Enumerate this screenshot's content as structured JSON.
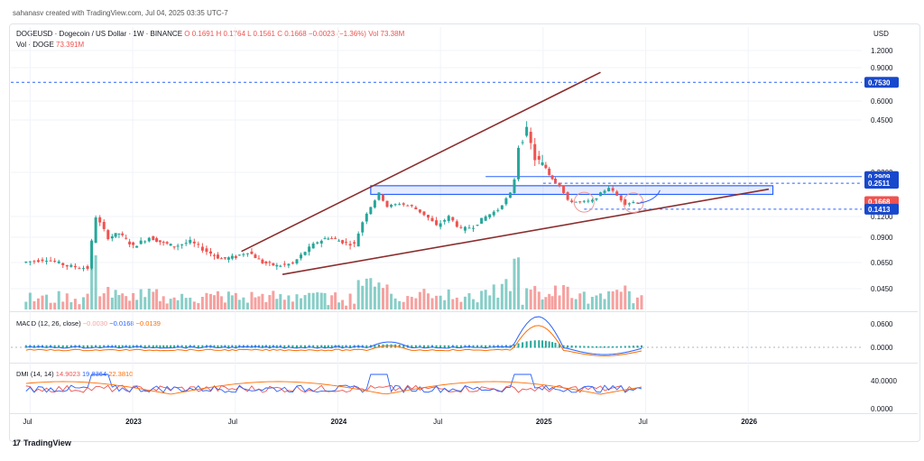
{
  "header": {
    "credit": "sahanasv created with TradingView.com, Jul 04, 2025 03:35 UTC-7"
  },
  "legend": {
    "symbol": "DOGEUSD · Dogecoin / US Dollar · 1W · BINANCE",
    "open": "O 0.1691",
    "high": "H 0.1764",
    "low": "L 0.1561",
    "close": "C 0.1668",
    "change": "−0.0023 (−1.36%)",
    "vol": "Vol 73.38M",
    "vol_label": "Vol · DOGE",
    "vol_value": "73.391M"
  },
  "macd_legend": {
    "label": "MACD (12, 26, close)",
    "v1": "−0.0030",
    "v2": "−0.0168",
    "v3": "−0.0139"
  },
  "dmi_legend": {
    "label": "DMI (14, 14)",
    "v1": "14.9023",
    "v2": "19.8364",
    "v3": "22.3810"
  },
  "axis": {
    "currency": "USD"
  },
  "brand": {
    "logo": "17",
    "name": "TradingView"
  },
  "colors": {
    "up": "#26a69a",
    "down": "#ef5350",
    "trend": "#8b2e2e",
    "level": "#2962ff",
    "price_badge": "#ef5350",
    "level_badge": "#1848cc"
  },
  "chart_data": {
    "type": "candlestick",
    "scale": "log",
    "price_axis_labels": [
      "1.2000",
      "0.9000",
      "0.6000",
      "0.4500",
      "0.3200",
      "0.1200",
      "0.0900",
      "0.0650",
      "0.0450"
    ],
    "price_badges": [
      {
        "label": "0.7530",
        "value": 0.753,
        "kind": "level"
      },
      {
        "label": "0.2909",
        "value": 0.2909,
        "kind": "level"
      },
      {
        "label": "0.2511",
        "value": 0.2511,
        "kind": "level"
      },
      {
        "label": "0.1668",
        "value": 0.1668,
        "kind": "price"
      },
      {
        "label": "0.1413",
        "value": 0.1413,
        "kind": "level"
      }
    ],
    "x_labels": [
      "Jul",
      "2023",
      "Jul",
      "2024",
      "Jul",
      "2025",
      "Jul",
      "2026"
    ],
    "x_label_dates": [
      2022.5,
      2023.0,
      2023.5,
      2024.0,
      2024.5,
      2025.0,
      2025.5,
      2026.0
    ],
    "macd_axis_labels": [
      "0.0600",
      "0.0000"
    ],
    "dmi_axis_labels": [
      "40.0000",
      "0.0000"
    ],
    "price_path": [
      [
        2022.48,
        0.065
      ],
      [
        2022.6,
        0.068
      ],
      [
        2022.7,
        0.062
      ],
      [
        2022.8,
        0.06
      ],
      [
        2022.84,
        0.12
      ],
      [
        2022.9,
        0.09
      ],
      [
        2022.95,
        0.095
      ],
      [
        2023.02,
        0.08
      ],
      [
        2023.1,
        0.09
      ],
      [
        2023.15,
        0.085
      ],
      [
        2023.22,
        0.08
      ],
      [
        2023.3,
        0.085
      ],
      [
        2023.38,
        0.075
      ],
      [
        2023.45,
        0.068
      ],
      [
        2023.52,
        0.07
      ],
      [
        2023.58,
        0.075
      ],
      [
        2023.65,
        0.065
      ],
      [
        2023.72,
        0.062
      ],
      [
        2023.8,
        0.064
      ],
      [
        2023.86,
        0.075
      ],
      [
        2023.92,
        0.085
      ],
      [
        2023.97,
        0.09
      ],
      [
        2024.04,
        0.085
      ],
      [
        2024.1,
        0.082
      ],
      [
        2024.16,
        0.13
      ],
      [
        2024.22,
        0.2
      ],
      [
        2024.26,
        0.15
      ],
      [
        2024.32,
        0.16
      ],
      [
        2024.38,
        0.15
      ],
      [
        2024.44,
        0.125
      ],
      [
        2024.5,
        0.105
      ],
      [
        2024.56,
        0.12
      ],
      [
        2024.62,
        0.1
      ],
      [
        2024.68,
        0.105
      ],
      [
        2024.74,
        0.12
      ],
      [
        2024.8,
        0.14
      ],
      [
        2024.86,
        0.2
      ],
      [
        2024.9,
        0.38
      ],
      [
        2024.94,
        0.42
      ],
      [
        2024.98,
        0.35
      ],
      [
        2025.03,
        0.33
      ],
      [
        2025.06,
        0.28
      ],
      [
        2025.1,
        0.24
      ],
      [
        2025.14,
        0.17
      ],
      [
        2025.2,
        0.165
      ],
      [
        2025.26,
        0.17
      ],
      [
        2025.3,
        0.2
      ],
      [
        2025.34,
        0.23
      ],
      [
        2025.38,
        0.19
      ],
      [
        2025.42,
        0.16
      ],
      [
        2025.46,
        0.165
      ],
      [
        2025.5,
        0.1668
      ]
    ],
    "trendlines": [
      {
        "from": [
          2023.53,
          0.075
        ],
        "to": [
          2025.28,
          0.85
        ]
      },
      {
        "from": [
          2023.73,
          0.055
        ],
        "to": [
          2026.1,
          0.22
        ]
      }
    ],
    "zone": {
      "x_from": 2024.16,
      "x_to": 2026.12,
      "y_low": 0.2,
      "y_high": 0.215
    },
    "resistance_dashed": [
      0.753,
      0.2511,
      0.1413
    ],
    "resistance_solid": 0.2909
  }
}
